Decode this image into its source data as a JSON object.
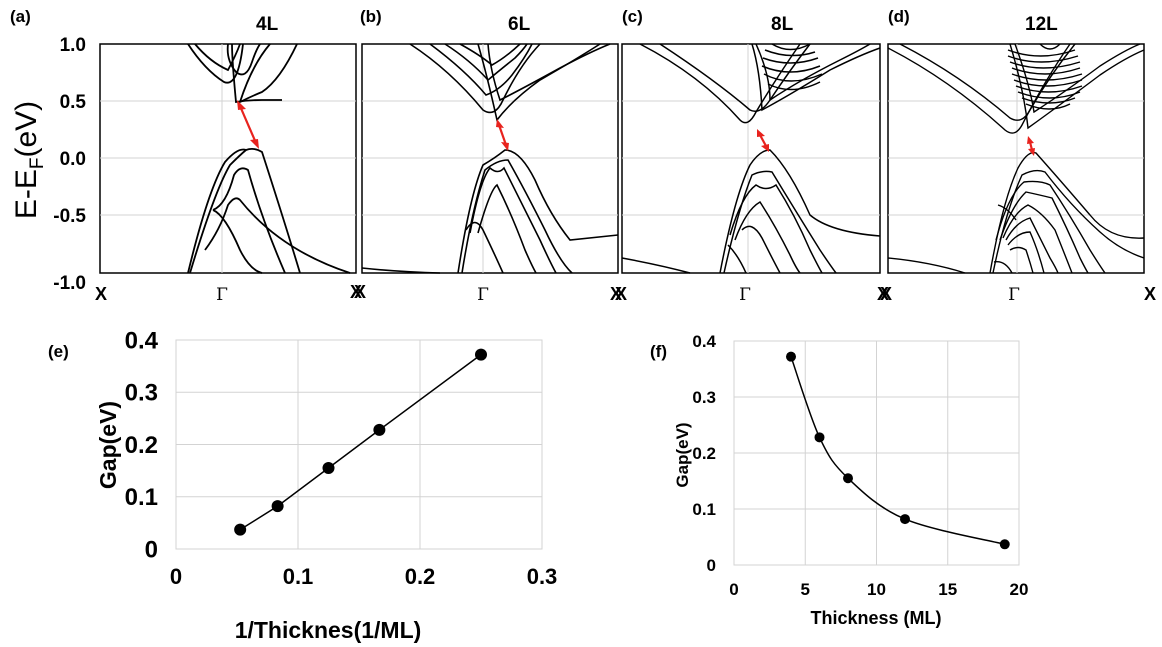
{
  "chart_data": [
    {
      "type": "line",
      "panel_label": "(a)",
      "title": "4L",
      "ylabel_parts": [
        "E-E",
        "F",
        "(eV)"
      ],
      "ylim": [
        -1.0,
        1.0
      ],
      "yticks": [
        "1.0",
        "0.5",
        "0.0",
        "-0.5",
        "-1.0"
      ],
      "xticks": [
        "X",
        "Γ",
        "X"
      ],
      "grid": true,
      "gap_arrow_color": "#e8231e",
      "line_color": "#000000"
    },
    {
      "type": "line",
      "panel_label": "(b)",
      "title": "6L",
      "ylim": [
        -1.0,
        1.0
      ],
      "xticks": [
        "X",
        "Γ",
        "X"
      ],
      "grid": true,
      "gap_arrow_color": "#e8231e",
      "line_color": "#000000"
    },
    {
      "type": "line",
      "panel_label": "(c)",
      "title": "8L",
      "ylim": [
        -1.0,
        1.0
      ],
      "xticks": [
        "X",
        "Γ",
        "X"
      ],
      "grid": true,
      "gap_arrow_color": "#e8231e",
      "line_color": "#000000"
    },
    {
      "type": "line",
      "panel_label": "(d)",
      "title": "12L",
      "ylim": [
        -1.0,
        1.0
      ],
      "xticks": [
        "X",
        "Γ",
        "X"
      ],
      "grid": true,
      "gap_arrow_color": "#e8231e",
      "line_color": "#000000"
    },
    {
      "type": "scatter",
      "panel_label": "(e)",
      "xlabel": "1/Thicknes(1/ML)",
      "ylabel": "Gap(eV)",
      "xlim": [
        0,
        0.3
      ],
      "ylim": [
        0,
        0.4
      ],
      "xticks": [
        "0",
        "0.1",
        "0.2",
        "0.3"
      ],
      "yticks": [
        "0",
        "0.1",
        "0.2",
        "0.3",
        "0.4"
      ],
      "x": [
        0.0526,
        0.0833,
        0.125,
        0.1667,
        0.25
      ],
      "y": [
        0.037,
        0.082,
        0.155,
        0.228,
        0.372
      ],
      "grid": true,
      "connect": "straight",
      "marker_color": "#000000"
    },
    {
      "type": "scatter",
      "panel_label": "(f)",
      "xlabel": "Thickness (ML)",
      "ylabel": "Gap(eV)",
      "xlim": [
        0,
        20
      ],
      "ylim": [
        0,
        0.4
      ],
      "xticks": [
        "0",
        "5",
        "10",
        "15",
        "20"
      ],
      "yticks": [
        "0",
        "0.1",
        "0.2",
        "0.3",
        "0.4"
      ],
      "x": [
        4,
        6,
        8,
        12,
        19
      ],
      "y": [
        0.372,
        0.228,
        0.155,
        0.082,
        0.037
      ],
      "grid": true,
      "connect": "smooth",
      "marker_color": "#000000"
    }
  ]
}
